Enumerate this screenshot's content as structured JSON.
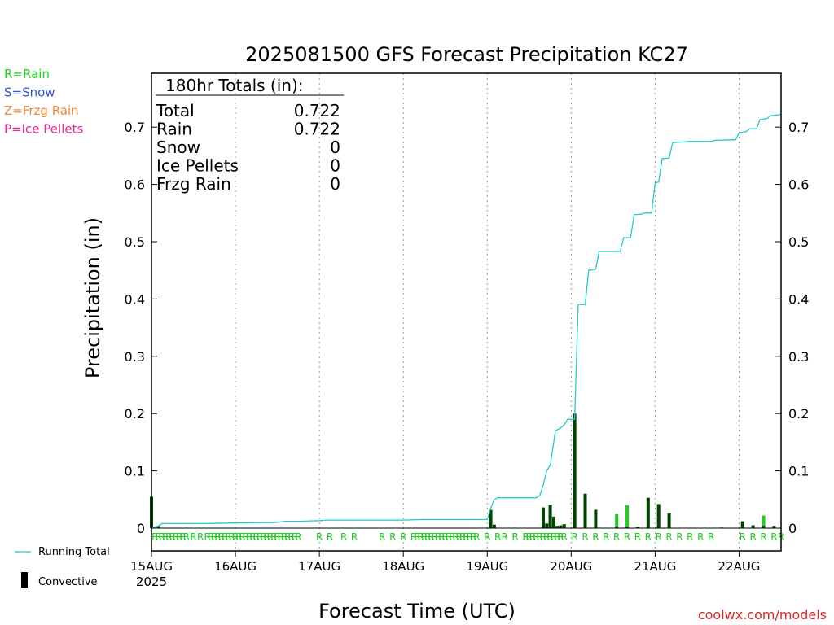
{
  "title": "2025081500 GFS Forecast Precipitation KC27",
  "xlabel": "Forecast Time (UTC)",
  "ylabel": "Precipitation (in)",
  "watermark": "coolwx.com/models",
  "type_legend": [
    {
      "label": "R=Rain",
      "color": "#22cc22"
    },
    {
      "label": "S=Snow",
      "color": "#3355dd"
    },
    {
      "label": "Z=Frzg Rain",
      "color": "#ee8833"
    },
    {
      "label": "P=Ice Pellets",
      "color": "#ee2299"
    }
  ],
  "series_legend": {
    "running_total": "Running Total",
    "convective": "Convective"
  },
  "colors": {
    "running_total": "#22cccc",
    "convective": "#004400",
    "stratiform": "#22cc22",
    "rain_marker": "#22cc22"
  },
  "totals": {
    "header": "180hr Totals (in):",
    "rows": [
      {
        "label": "Total",
        "value": "0.722"
      },
      {
        "label": "Rain",
        "value": "0.722"
      },
      {
        "label": "Snow",
        "value": "0"
      },
      {
        "label": "Ice Pellets",
        "value": "0"
      },
      {
        "label": "Frzg Rain",
        "value": "0"
      }
    ]
  },
  "chart_data": {
    "type": "bar",
    "x_unit": "hours since 15AUG 00Z",
    "xlim": [
      0,
      180
    ],
    "ylim": [
      0,
      0.8
    ],
    "yticks": [
      0,
      0.1,
      0.2,
      0.3,
      0.4,
      0.5,
      0.6,
      0.7
    ],
    "ytick_labels": [
      "0",
      "0.1",
      "0.2",
      "0.3",
      "0.4",
      "0.5",
      "0.6",
      "0.7"
    ],
    "xticks": [
      {
        "hour": 0,
        "label": "15AUG",
        "sublabel": "2025"
      },
      {
        "hour": 24,
        "label": "16AUG"
      },
      {
        "hour": 48,
        "label": "17AUG"
      },
      {
        "hour": 72,
        "label": "18AUG"
      },
      {
        "hour": 96,
        "label": "19AUG"
      },
      {
        "hour": 120,
        "label": "20AUG"
      },
      {
        "hour": 144,
        "label": "21AUG"
      },
      {
        "hour": 168,
        "label": "22AUG"
      }
    ],
    "grid": "vertical dotted",
    "running_total": [
      [
        0,
        0.0
      ],
      [
        1,
        0.002
      ],
      [
        2,
        0.004
      ],
      [
        3,
        0.008
      ],
      [
        15,
        0.008
      ],
      [
        24,
        0.009
      ],
      [
        36,
        0.01
      ],
      [
        38,
        0.012
      ],
      [
        42,
        0.012
      ],
      [
        48,
        0.013
      ],
      [
        50,
        0.014
      ],
      [
        72,
        0.014
      ],
      [
        78,
        0.015
      ],
      [
        90,
        0.015
      ],
      [
        96,
        0.015
      ],
      [
        97,
        0.035
      ],
      [
        98,
        0.05
      ],
      [
        99,
        0.053
      ],
      [
        110,
        0.053
      ],
      [
        111,
        0.057
      ],
      [
        112,
        0.075
      ],
      [
        113,
        0.1
      ],
      [
        114,
        0.11
      ],
      [
        114.5,
        0.13
      ],
      [
        115,
        0.15
      ],
      [
        115.5,
        0.17
      ],
      [
        117,
        0.175
      ],
      [
        118,
        0.18
      ],
      [
        119,
        0.19
      ],
      [
        121,
        0.19
      ],
      [
        122,
        0.39
      ],
      [
        124,
        0.39
      ],
      [
        125,
        0.45
      ],
      [
        127,
        0.452
      ],
      [
        128,
        0.483
      ],
      [
        134,
        0.483
      ],
      [
        135,
        0.507
      ],
      [
        137,
        0.507
      ],
      [
        138,
        0.547
      ],
      [
        140,
        0.548
      ],
      [
        141,
        0.55
      ],
      [
        143,
        0.55
      ],
      [
        144,
        0.603
      ],
      [
        145,
        0.604
      ],
      [
        146,
        0.645
      ],
      [
        148,
        0.646
      ],
      [
        149,
        0.673
      ],
      [
        154,
        0.675
      ],
      [
        160,
        0.675
      ],
      [
        161,
        0.677
      ],
      [
        167,
        0.678
      ],
      [
        168,
        0.69
      ],
      [
        170,
        0.692
      ],
      [
        171,
        0.697
      ],
      [
        173,
        0.697
      ],
      [
        174,
        0.713
      ],
      [
        176,
        0.715
      ],
      [
        177,
        0.72
      ],
      [
        180,
        0.722
      ]
    ],
    "bars": [
      {
        "hour": 0,
        "convective": 0.055
      },
      {
        "hour": 2,
        "convective": 0.004
      },
      {
        "hour": 97,
        "convective": 0.032
      },
      {
        "hour": 98,
        "convective": 0.006
      },
      {
        "hour": 112,
        "convective": 0.036
      },
      {
        "hour": 113,
        "convective": 0.008
      },
      {
        "hour": 114,
        "convective": 0.04
      },
      {
        "hour": 115,
        "convective": 0.02
      },
      {
        "hour": 116,
        "convective": 0.004
      },
      {
        "hour": 117,
        "convective": 0.005
      },
      {
        "hour": 118,
        "convective": 0.007
      },
      {
        "hour": 121,
        "convective": 0.2
      },
      {
        "hour": 124,
        "convective": 0.06
      },
      {
        "hour": 127,
        "convective": 0.032
      },
      {
        "hour": 133,
        "convective": 0.003,
        "stratiform": 0.022
      },
      {
        "hour": 136,
        "convective": 0.002,
        "stratiform": 0.038
      },
      {
        "hour": 139,
        "convective": 0.002
      },
      {
        "hour": 142,
        "convective": 0.053
      },
      {
        "hour": 145,
        "convective": 0.042
      },
      {
        "hour": 148,
        "convective": 0.027
      },
      {
        "hour": 163,
        "convective": 0.001
      },
      {
        "hour": 169,
        "convective": 0.012
      },
      {
        "hour": 172,
        "convective": 0.005
      },
      {
        "hour": 175,
        "convective": 0.004,
        "stratiform": 0.018
      },
      {
        "hour": 178,
        "convective": 0.004
      }
    ],
    "type_markers": {
      "dense_ranges_hours": [
        [
          1,
          9
        ],
        [
          16,
          42
        ],
        [
          76,
          93
        ],
        [
          107,
          118
        ]
      ],
      "sparse_hours": [
        10,
        12,
        14,
        48,
        51,
        55,
        58,
        66,
        69,
        72,
        75,
        96,
        99,
        101,
        104,
        121,
        124,
        127,
        130,
        133,
        136,
        139,
        142,
        145,
        148,
        151,
        154,
        157,
        160,
        169,
        172,
        175,
        178,
        180
      ],
      "symbol": "R"
    }
  }
}
